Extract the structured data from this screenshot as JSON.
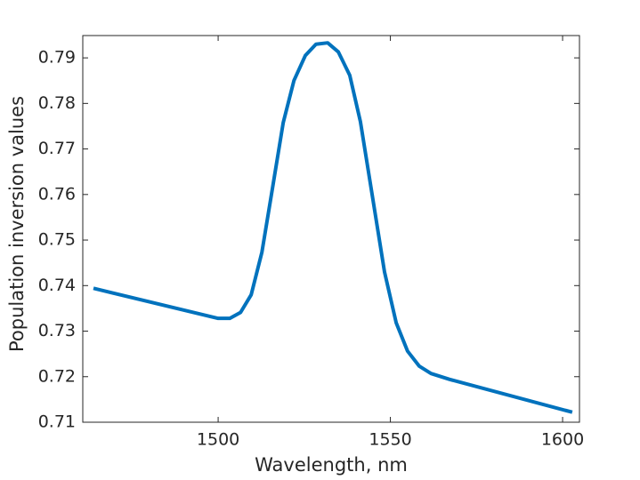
{
  "chart_data": {
    "type": "line",
    "xlabel": "Wavelength, nm",
    "ylabel": "Population inversion values",
    "x": [
      1463.8,
      1500,
      1503.4,
      1506.5,
      1509.6,
      1512.7,
      1515.8,
      1518.9,
      1522,
      1525.3,
      1528.4,
      1531.8,
      1534.9,
      1538.2,
      1541.3,
      1544.7,
      1548.3,
      1551.7,
      1555,
      1558.4,
      1561.8,
      1567.2,
      1602.8
    ],
    "series": [
      {
        "name": "Population inversion",
        "color": "#0072bd",
        "values": [
          0.7394,
          0.7328,
          0.7328,
          0.7341,
          0.738,
          0.7473,
          0.7615,
          0.7758,
          0.785,
          0.7905,
          0.793,
          0.7933,
          0.7913,
          0.7862,
          0.776,
          0.76,
          0.743,
          0.7318,
          0.7256,
          0.7223,
          0.7207,
          0.7194,
          0.7122
        ]
      }
    ],
    "xlim": [
      1460.7,
      1604.9
    ],
    "ylim": [
      0.71,
      0.7949
    ],
    "xticks": [
      1500,
      1550,
      1600
    ],
    "yticks": [
      0.71,
      0.72,
      0.73,
      0.74,
      0.75,
      0.76,
      0.77,
      0.78,
      0.79
    ],
    "grid": false
  }
}
